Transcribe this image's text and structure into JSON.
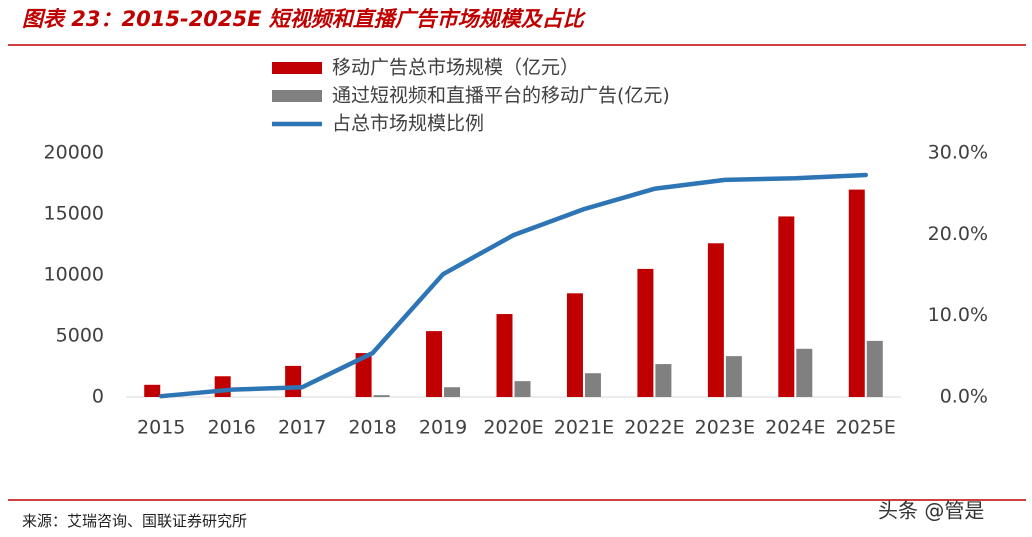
{
  "chart_data": {
    "type": "bar",
    "title": "图表 23：2015-2025E 短视频和直播广告市场规模及占比",
    "source": "来源：艾瑞咨询、国联证券研究所",
    "watermark": "头条 @管是",
    "categories": [
      "2015",
      "2016",
      "2017",
      "2018",
      "2019",
      "2020E",
      "2021E",
      "2022E",
      "2023E",
      "2024E",
      "2025E"
    ],
    "series": [
      {
        "name": "移动广告总市场规模（亿元）",
        "type": "bar",
        "color": "#c00000",
        "values": [
          1000,
          1700,
          2550,
          3600,
          5400,
          6800,
          8500,
          10500,
          12600,
          14800,
          17000
        ]
      },
      {
        "name": "通过短视频和直播平台的移动广告(亿元)",
        "type": "bar",
        "color": "#808080",
        "values": [
          0,
          0,
          0,
          150,
          800,
          1300,
          1950,
          2700,
          3350,
          3950,
          4600
        ]
      },
      {
        "name": "占总市场规模比例",
        "type": "line",
        "axis": "y2",
        "color": "#2e75b6",
        "values": [
          0.1,
          0.9,
          1.2,
          5.4,
          15.1,
          19.9,
          23.1,
          25.6,
          26.7,
          26.9,
          27.3
        ]
      }
    ],
    "ylim": [
      0,
      20000
    ],
    "yticks": [
      0,
      5000,
      10000,
      15000,
      20000
    ],
    "y2lim": [
      0,
      30
    ],
    "y2ticks": [
      {
        "value": 0,
        "label": "0.0%"
      },
      {
        "value": 10,
        "label": "10.0%"
      },
      {
        "value": 20,
        "label": "20.0%"
      },
      {
        "value": 30,
        "label": "30.0%"
      }
    ],
    "grid": false,
    "legend": "top"
  }
}
